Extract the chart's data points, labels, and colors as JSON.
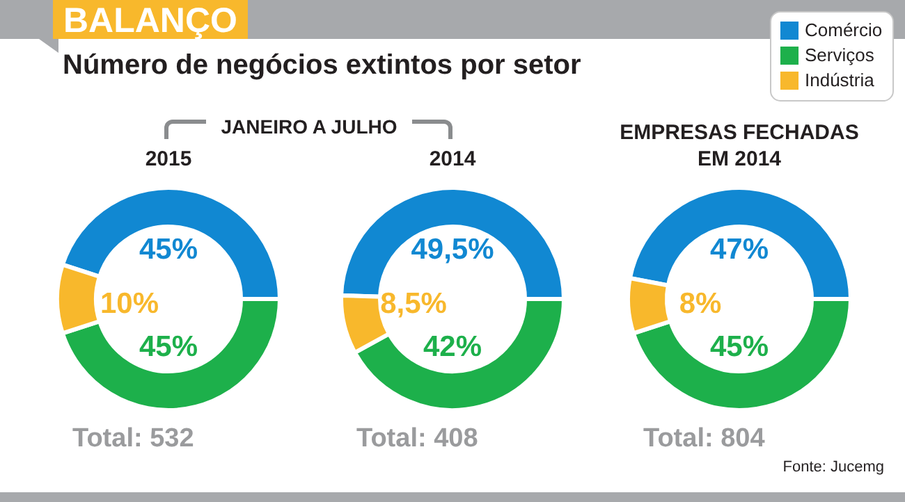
{
  "chart_data": [
    {
      "type": "donut",
      "title": "BALANÇO",
      "subtitle": "Número de negócios extintos por setor",
      "categories": [
        null,
        null,
        null
      ],
      "values": [
        45,
        45,
        10
      ],
      "colors": [
        "#1188d2",
        "#1db04b",
        "#f8b82c"
      ],
      "value_labels": [
        "45%",
        "45%",
        "10%"
      ],
      "annotations": [
        "JANEIRO A JULHO",
        "2015",
        "Total: 532"
      ]
    },
    {
      "type": "donut",
      "title": "2014",
      "categories": [
        null,
        null,
        null
      ],
      "values": [
        49.5,
        42,
        8.5
      ],
      "colors": [
        "#1188d2",
        "#1db04b",
        "#f8b82c"
      ],
      "value_labels": [
        "49,5%",
        "42%",
        "8,5%"
      ],
      "annotations": [
        "Total: 408"
      ]
    },
    {
      "type": "donut",
      "title": "EMPRESAS FECHADAS\nEM 2014",
      "categories": [
        "Comércio",
        "Serviços",
        "Indústria"
      ],
      "values": [
        47,
        45,
        8
      ],
      "colors": [
        "#1188d2",
        "#1db04b",
        "#f8b82c"
      ],
      "value_labels": [
        "47%",
        "45%",
        "8%"
      ],
      "annotations": [
        "Total: 804",
        "Fonte: Jucemg"
      ],
      "legend": "top right"
    }
  ]
}
